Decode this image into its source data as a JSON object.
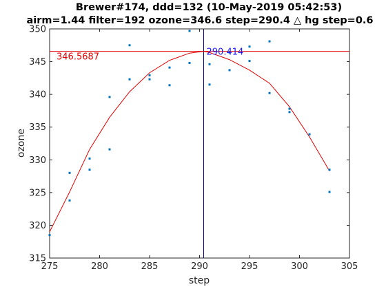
{
  "chart_data": {
    "type": "scatter",
    "title_line1": "Brewer#174, ddd=132 (10-May-2019 05:42:53)",
    "title_line2": "airm=1.44  filter=192 ozone=346.6  step=290.4 △ hg step=0.6",
    "xlabel": "step",
    "ylabel": "ozone",
    "xlim": [
      275,
      305
    ],
    "ylim": [
      315,
      350
    ],
    "xticks": [
      275,
      280,
      285,
      290,
      295,
      300,
      305
    ],
    "yticks": [
      315,
      320,
      325,
      330,
      335,
      340,
      345,
      350
    ],
    "grid": false,
    "points": [
      {
        "x": 275,
        "y": 318.5
      },
      {
        "x": 277,
        "y": 328.0
      },
      {
        "x": 277,
        "y": 323.8
      },
      {
        "x": 279,
        "y": 330.2
      },
      {
        "x": 279,
        "y": 328.5
      },
      {
        "x": 281,
        "y": 339.6
      },
      {
        "x": 281,
        "y": 331.6
      },
      {
        "x": 283,
        "y": 347.5
      },
      {
        "x": 283,
        "y": 342.3
      },
      {
        "x": 285,
        "y": 342.9
      },
      {
        "x": 285,
        "y": 342.3
      },
      {
        "x": 287,
        "y": 344.1
      },
      {
        "x": 287,
        "y": 341.4
      },
      {
        "x": 289,
        "y": 349.7
      },
      {
        "x": 289,
        "y": 344.8
      },
      {
        "x": 291,
        "y": 344.6
      },
      {
        "x": 291,
        "y": 341.5
      },
      {
        "x": 293,
        "y": 346.4
      },
      {
        "x": 293,
        "y": 343.7
      },
      {
        "x": 295,
        "y": 347.3
      },
      {
        "x": 295,
        "y": 345.1
      },
      {
        "x": 297,
        "y": 348.1
      },
      {
        "x": 297,
        "y": 340.2
      },
      {
        "x": 299,
        "y": 337.8
      },
      {
        "x": 299,
        "y": 337.3
      },
      {
        "x": 301,
        "y": 333.9
      },
      {
        "x": 303,
        "y": 328.5
      },
      {
        "x": 303,
        "y": 325.1
      }
    ],
    "fit": {
      "x": [
        275,
        277,
        279,
        281,
        283,
        285,
        287,
        289,
        290.414,
        291,
        293,
        295,
        297,
        299,
        301,
        303
      ],
      "y": [
        319.0,
        325.1,
        331.6,
        336.5,
        340.4,
        343.3,
        345.2,
        346.3,
        346.5687,
        346.4,
        345.3,
        343.7,
        341.7,
        338.1,
        333.5,
        328.3
      ]
    },
    "max_step": 290.414,
    "max_ozone": 346.5687,
    "max_step_label": "290.414",
    "max_ozone_label": "346.5687",
    "colors": {
      "points": "#0072bd",
      "fit": "#e00000",
      "hline": "#e00000",
      "vline": "#000080",
      "max_step_label": "#1a1aff",
      "max_ozone_label": "#e00000"
    }
  }
}
